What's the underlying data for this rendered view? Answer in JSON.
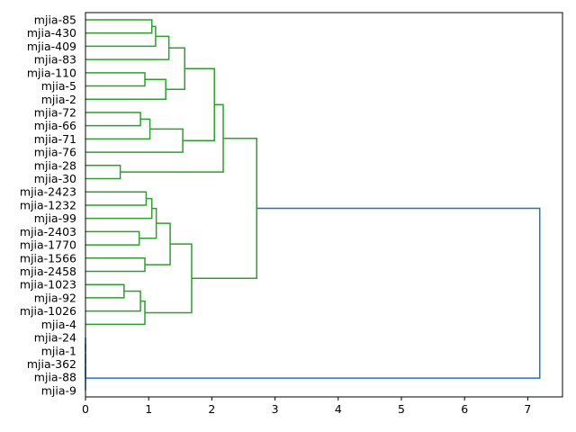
{
  "chart_data": {
    "type": "dendrogram",
    "orientation": "horizontal",
    "title": "",
    "xlabel": "",
    "ylabel": "",
    "xlim": [
      0,
      7.55
    ],
    "x_ticks": [
      0,
      1,
      2,
      3,
      4,
      5,
      6,
      7
    ],
    "colors": {
      "cluster": "#2ca02c",
      "above_threshold": "#1f77b4"
    },
    "leaves": [
      "mjia-85",
      "mjia-430",
      "mjia-409",
      "mjia-83",
      "mjia-110",
      "mjia-5",
      "mjia-2",
      "mjia-72",
      "mjia-66",
      "mjia-71",
      "mjia-76",
      "mjia-28",
      "mjia-30",
      "mjia-2423",
      "mjia-1232",
      "mjia-99",
      "mjia-2403",
      "mjia-1770",
      "mjia-1566",
      "mjia-2458",
      "mjia-1023",
      "mjia-92",
      "mjia-1026",
      "mjia-4",
      "mjia-24",
      "mjia-1",
      "mjia-362",
      "mjia-88",
      "mjia-9"
    ],
    "links": [
      {
        "id": "n0",
        "left": "mjia-85",
        "right": "mjia-430",
        "height": 1.05,
        "color": "cluster"
      },
      {
        "id": "n1",
        "left": "n0",
        "right": "mjia-409",
        "height": 1.11,
        "color": "cluster"
      },
      {
        "id": "n2",
        "left": "n1",
        "right": "mjia-83",
        "height": 1.32,
        "color": "cluster"
      },
      {
        "id": "n3",
        "left": "mjia-110",
        "right": "mjia-5",
        "height": 0.94,
        "color": "cluster"
      },
      {
        "id": "n4",
        "left": "n3",
        "right": "mjia-2",
        "height": 1.27,
        "color": "cluster"
      },
      {
        "id": "n5",
        "left": "n2",
        "right": "n4",
        "height": 1.57,
        "color": "cluster"
      },
      {
        "id": "n6",
        "left": "mjia-72",
        "right": "mjia-66",
        "height": 0.87,
        "color": "cluster"
      },
      {
        "id": "n7",
        "left": "n6",
        "right": "mjia-71",
        "height": 1.02,
        "color": "cluster"
      },
      {
        "id": "n8",
        "left": "n7",
        "right": "mjia-76",
        "height": 1.54,
        "color": "cluster"
      },
      {
        "id": "n9",
        "left": "n5",
        "right": "n8",
        "height": 2.04,
        "color": "cluster"
      },
      {
        "id": "n10",
        "left": "mjia-28",
        "right": "mjia-30",
        "height": 0.55,
        "color": "cluster"
      },
      {
        "id": "n11",
        "left": "n9",
        "right": "n10",
        "height": 2.18,
        "color": "cluster"
      },
      {
        "id": "n12",
        "left": "mjia-2423",
        "right": "mjia-1232",
        "height": 0.96,
        "color": "cluster"
      },
      {
        "id": "n13",
        "left": "n12",
        "right": "mjia-99",
        "height": 1.05,
        "color": "cluster"
      },
      {
        "id": "n14",
        "left": "mjia-2403",
        "right": "mjia-1770",
        "height": 0.85,
        "color": "cluster"
      },
      {
        "id": "n15",
        "left": "n13",
        "right": "n14",
        "height": 1.12,
        "color": "cluster"
      },
      {
        "id": "n16",
        "left": "mjia-1566",
        "right": "mjia-2458",
        "height": 0.94,
        "color": "cluster"
      },
      {
        "id": "n17",
        "left": "n15",
        "right": "n16",
        "height": 1.34,
        "color": "cluster"
      },
      {
        "id": "n18",
        "left": "mjia-1023",
        "right": "mjia-92",
        "height": 0.61,
        "color": "cluster"
      },
      {
        "id": "n19",
        "left": "n18",
        "right": "mjia-1026",
        "height": 0.87,
        "color": "cluster"
      },
      {
        "id": "n20",
        "left": "n19",
        "right": "mjia-4",
        "height": 0.94,
        "color": "cluster"
      },
      {
        "id": "n21",
        "left": "n17",
        "right": "n20",
        "height": 1.68,
        "color": "cluster"
      },
      {
        "id": "n22",
        "left": "n11",
        "right": "n21",
        "height": 2.71,
        "color": "cluster"
      },
      {
        "id": "n23",
        "left": "mjia-24",
        "right": "mjia-1",
        "height": 0.0,
        "color": "above_threshold"
      },
      {
        "id": "n24",
        "left": "n23",
        "right": "mjia-362",
        "height": 0.0,
        "color": "above_threshold"
      },
      {
        "id": "n25",
        "left": "n24",
        "right": "mjia-88",
        "height": 0.0,
        "color": "above_threshold"
      },
      {
        "id": "n26",
        "left": "n25",
        "right": "mjia-9",
        "height": 0.0,
        "color": "above_threshold"
      },
      {
        "id": "n27",
        "left": "n22",
        "right": "n26",
        "height": 7.19,
        "color": "above_threshold"
      }
    ]
  }
}
